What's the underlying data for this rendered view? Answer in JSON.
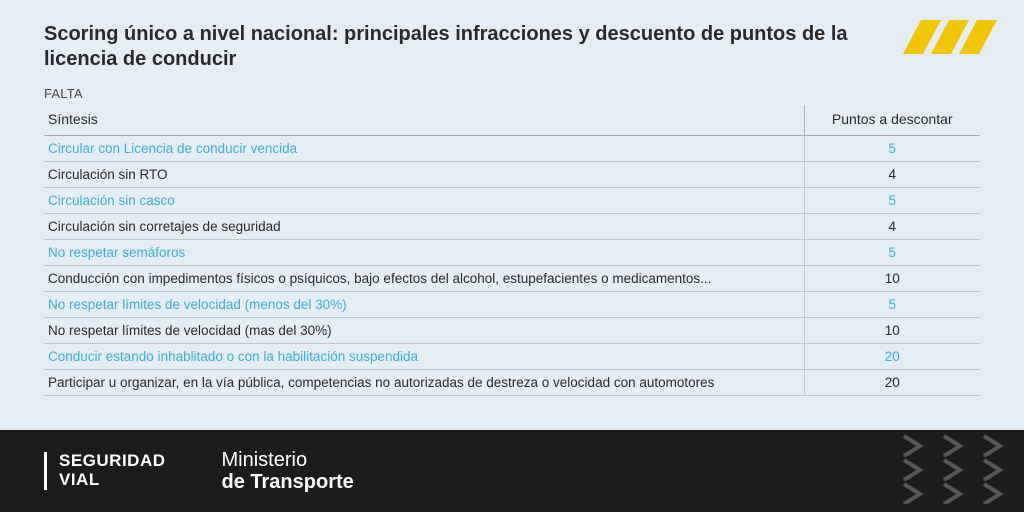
{
  "title": "Scoring único a nivel nacional: principales infracciones y descuento de puntos de la licencia de conducir",
  "falta_label": "FALTA",
  "columns": {
    "desc": "Síntesis",
    "points": "Puntos a descontar"
  },
  "rows": [
    {
      "desc": "Circular con Licencia de conducir vencida",
      "points": "5",
      "highlight": true
    },
    {
      "desc": "Circulación sin RTO",
      "points": "4",
      "highlight": false
    },
    {
      "desc": "Circulación sin casco",
      "points": "5",
      "highlight": true
    },
    {
      "desc": "Circulación sin corretajes de seguridad",
      "points": "4",
      "highlight": false
    },
    {
      "desc": "No respetar semáforos",
      "points": "5",
      "highlight": true
    },
    {
      "desc": "Conducción con impedimentos físicos o psíquicos, bajo efectos del alcohol, estupefacientes o medicamentos...",
      "points": "10",
      "highlight": false
    },
    {
      "desc": "No respetar límites de velocidad (menos del 30%)",
      "points": "5",
      "highlight": true
    },
    {
      "desc": "No respetar límites de velocidad (mas del 30%)",
      "points": "10",
      "highlight": false
    },
    {
      "desc": "Conducir estando inhablitado o con la habilitación suspendida",
      "points": "20",
      "highlight": true
    },
    {
      "desc": "Participar u organizar, en la vía pública, competencias no autorizadas de destreza o velocidad con automotores",
      "points": "20",
      "highlight": false
    }
  ],
  "footer": {
    "seg_l1": "SEGURIDAD",
    "seg_l2": "VIAL",
    "min_l1": "Ministerio",
    "min_l2": "de Transporte"
  },
  "colors": {
    "page_bg": "#e6eef5",
    "accent_yellow": "#f3c500",
    "highlight_text": "#3daed9",
    "footer_bg": "#1c1c1c",
    "chevron": "#565656"
  }
}
